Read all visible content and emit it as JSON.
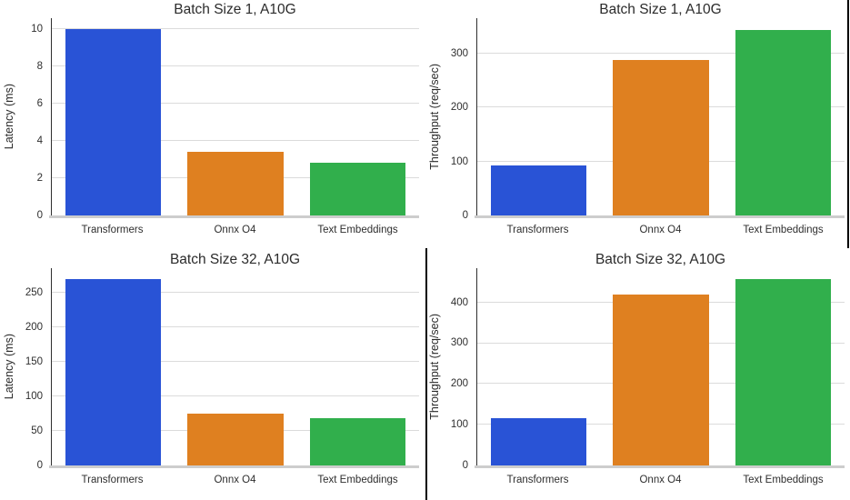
{
  "figure": {
    "background": "#ffffff",
    "text_color": "#262626",
    "grid_color": "#dbdbdb",
    "left_spine_color": "#2e2e2e",
    "baseline_color": "#cdcdcd",
    "border_line_color": "#000000"
  },
  "palette": [
    "#2953d6",
    "#df8020",
    "#31af4c"
  ],
  "chart_data": [
    {
      "type": "bar",
      "title": "Batch Size 1, A10G",
      "ylabel": "Latency (ms)",
      "xlabel": "",
      "categories": [
        "Transformers",
        "Onnx O4",
        "Text Embeddings"
      ],
      "values": [
        10.0,
        3.4,
        2.85
      ],
      "yticks": [
        0,
        2,
        4,
        6,
        8,
        10
      ],
      "ylim": [
        0,
        10.6
      ],
      "grid": "horizontal",
      "legend": "none"
    },
    {
      "type": "bar",
      "title": "Batch Size 1, A10G",
      "ylabel": "Throughput (req/sec)",
      "xlabel": "",
      "categories": [
        "Transformers",
        "Onnx O4",
        "Text Embeddings"
      ],
      "values": [
        92,
        288,
        344
      ],
      "yticks": [
        0,
        100,
        200,
        300
      ],
      "ylim": [
        0,
        365
      ],
      "grid": "horizontal",
      "legend": "none"
    },
    {
      "type": "bar",
      "title": "Batch Size 32, A10G",
      "ylabel": "Latency (ms)",
      "xlabel": "",
      "categories": [
        "Transformers",
        "Onnx O4",
        "Text Embeddings"
      ],
      "values": [
        270,
        75,
        68
      ],
      "yticks": [
        0,
        50,
        100,
        150,
        200,
        250
      ],
      "ylim": [
        0,
        286
      ],
      "grid": "horizontal",
      "legend": "none"
    },
    {
      "type": "bar",
      "title": "Batch Size 32, A10G",
      "ylabel": "Throughput (req/sec)",
      "xlabel": "",
      "categories": [
        "Transformers",
        "Onnx O4",
        "Text Embeddings"
      ],
      "values": [
        116,
        420,
        457
      ],
      "yticks": [
        0,
        100,
        200,
        300,
        400
      ],
      "ylim": [
        0,
        484
      ],
      "grid": "horizontal",
      "legend": "none"
    }
  ]
}
